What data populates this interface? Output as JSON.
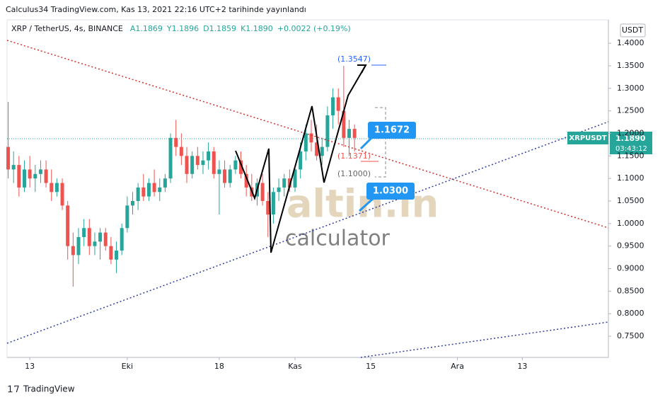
{
  "header": {
    "published": "Calculus34 TradingView.com, Kas 13, 2021 22:16 UTC+2 tarihinde yayınlandı",
    "legend": [
      "XRP / TetherUS, 4s, BINANCE",
      "A1.1869",
      "Y1.1896",
      "D1.1859",
      "K1.1890",
      "+0.0022 (+0.19%)"
    ]
  },
  "chart_data": {
    "type": "candlestick",
    "x": [
      9,
      10,
      11,
      12,
      13,
      14,
      15,
      16,
      17,
      18,
      19,
      20,
      21,
      22,
      23,
      24,
      25,
      26,
      27,
      28,
      29,
      30,
      31,
      32,
      33,
      34,
      35,
      36,
      37,
      38,
      39,
      40,
      41,
      42,
      43,
      44,
      45,
      46,
      47,
      48,
      49,
      50,
      51,
      52,
      53,
      54,
      55,
      56,
      57,
      58,
      59,
      60,
      61,
      62,
      63,
      64,
      65,
      66,
      67,
      68,
      69,
      70,
      71,
      72,
      73
    ],
    "open": [
      1.17,
      1.12,
      1.13,
      1.08,
      1.12,
      1.1,
      1.11,
      1.12,
      1.09,
      1.07,
      1.09,
      1.04,
      0.95,
      0.93,
      0.97,
      0.99,
      0.95,
      0.96,
      0.98,
      0.95,
      0.92,
      0.94,
      0.99,
      1.04,
      1.05,
      1.08,
      1.06,
      1.09,
      1.07,
      1.08,
      1.1,
      1.19,
      1.17,
      1.15,
      1.11,
      1.15,
      1.13,
      1.14,
      1.16,
      1.11,
      1.12,
      1.09,
      1.12,
      1.14,
      1.11,
      1.08,
      1.06,
      1.09,
      1.05,
      1.02,
      1.07,
      1.08,
      1.1,
      1.08,
      1.12,
      1.16,
      1.2,
      1.18,
      1.15,
      1.17,
      1.24,
      1.28,
      1.25,
      1.19,
      1.21
    ],
    "high": [
      1.27,
      1.16,
      1.15,
      1.14,
      1.15,
      1.13,
      1.14,
      1.14,
      1.12,
      1.1,
      1.1,
      1.05,
      0.98,
      0.99,
      1.01,
      1.01,
      0.98,
      0.99,
      0.99,
      0.97,
      0.96,
      1.0,
      1.06,
      1.07,
      1.09,
      1.11,
      1.1,
      1.12,
      1.1,
      1.11,
      1.2,
      1.23,
      1.2,
      1.17,
      1.16,
      1.17,
      1.16,
      1.18,
      1.17,
      1.14,
      1.14,
      1.13,
      1.15,
      1.16,
      1.13,
      1.11,
      1.1,
      1.11,
      1.07,
      1.08,
      1.1,
      1.11,
      1.12,
      1.13,
      1.18,
      1.22,
      1.23,
      1.22,
      1.19,
      1.26,
      1.3,
      1.3,
      1.35,
      1.23,
      1.22
    ],
    "low": [
      1.1,
      1.09,
      1.06,
      1.07,
      1.08,
      1.07,
      1.09,
      1.08,
      1.05,
      1.06,
      1.03,
      0.92,
      0.86,
      0.91,
      0.95,
      0.93,
      0.93,
      0.92,
      0.94,
      0.91,
      0.89,
      0.93,
      0.98,
      1.02,
      1.03,
      1.05,
      1.05,
      1.06,
      1.05,
      1.07,
      1.09,
      1.15,
      1.13,
      1.09,
      1.1,
      1.12,
      1.11,
      1.12,
      1.1,
      1.02,
      1.08,
      1.08,
      1.11,
      1.1,
      1.06,
      1.05,
      1.04,
      1.04,
      0.97,
      1.0,
      1.05,
      1.06,
      1.07,
      1.07,
      1.1,
      1.14,
      1.16,
      1.14,
      1.13,
      1.16,
      1.21,
      1.22,
      1.17,
      1.15,
      1.16
    ],
    "close": [
      1.12,
      1.13,
      1.08,
      1.12,
      1.1,
      1.11,
      1.12,
      1.09,
      1.07,
      1.09,
      1.04,
      0.95,
      0.93,
      0.97,
      0.99,
      0.95,
      0.96,
      0.98,
      0.95,
      0.92,
      0.94,
      0.99,
      1.04,
      1.05,
      1.08,
      1.06,
      1.09,
      1.07,
      1.08,
      1.1,
      1.19,
      1.17,
      1.15,
      1.11,
      1.15,
      1.13,
      1.14,
      1.16,
      1.11,
      1.12,
      1.09,
      1.12,
      1.14,
      1.11,
      1.08,
      1.06,
      1.09,
      1.05,
      1.02,
      1.07,
      1.08,
      1.1,
      1.08,
      1.12,
      1.16,
      1.2,
      1.18,
      1.15,
      1.17,
      1.24,
      1.28,
      1.25,
      1.19,
      1.21,
      1.19
    ],
    "up_color": "#26a69a",
    "down_color": "#ef5350",
    "xlim": [
      8.8,
      119.9
    ],
    "xticks": [
      {
        "value": 13,
        "label": "13"
      },
      {
        "value": 31,
        "label": "Eki"
      },
      {
        "value": 48,
        "label": "18"
      },
      {
        "value": 62,
        "label": "Kas"
      },
      {
        "value": 76,
        "label": "15"
      },
      {
        "value": 92,
        "label": "Ara"
      },
      {
        "value": 104,
        "label": "13"
      }
    ],
    "ylim": [
      0.703,
      1.452
    ],
    "yticks": [
      {
        "value": 0.75,
        "label": "0.7500"
      },
      {
        "value": 0.8,
        "label": "0.8000"
      },
      {
        "value": 0.85,
        "label": "0.8500"
      },
      {
        "value": 0.9,
        "label": "0.9000"
      },
      {
        "value": 0.95,
        "label": "0.9500"
      },
      {
        "value": 1.0,
        "label": "1.0000"
      },
      {
        "value": 1.05,
        "label": "1.0500"
      },
      {
        "value": 1.1,
        "label": "1.1000"
      },
      {
        "value": 1.15,
        "label": "1.1500"
      },
      {
        "value": 1.2,
        "label": "1.2000"
      },
      {
        "value": 1.25,
        "label": "1.2500"
      },
      {
        "value": 1.3,
        "label": "1.3000"
      },
      {
        "value": 1.35,
        "label": "1.3500"
      },
      {
        "value": 1.4,
        "label": "1.4000"
      }
    ],
    "currency": "USDT",
    "symbol_tag": "XRPUSDT",
    "last_price": "1.1890",
    "countdown": "03:43:12",
    "annotations": [
      "(1.3547)",
      "(1.1371)",
      "(1.1000)",
      "1.1672",
      "1.0300"
    ],
    "watermark": [
      "altin.in",
      "calculator"
    ]
  },
  "footer": {
    "brand": "TradingView"
  }
}
